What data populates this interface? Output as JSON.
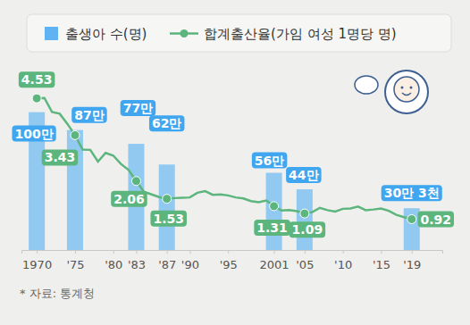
{
  "chart_data": {
    "type": "bar",
    "source": "* 자료: 통계청",
    "legend": "top",
    "data_labels": true,
    "tick_labels": "x",
    "x": [
      1970,
      1971,
      1972,
      1973,
      1974,
      1975,
      1976,
      1977,
      1978,
      1979,
      1980,
      1981,
      1982,
      1983,
      1984,
      1985,
      1986,
      1987,
      1988,
      1989,
      1990,
      1991,
      1992,
      1993,
      1994,
      1995,
      1996,
      1997,
      1998,
      1999,
      2000,
      2001,
      2002,
      2003,
      2004,
      2005,
      2006,
      2007,
      2008,
      2009,
      2010,
      2011,
      2012,
      2013,
      2014,
      2015,
      2016,
      2017,
      2018,
      2019
    ],
    "xlim": [
      1968,
      2023
    ],
    "xticks": [
      1970,
      {
        "value": 1975,
        "label": "'75"
      },
      {
        "value": 1980,
        "label": "'80"
      },
      {
        "value": 1983,
        "label": "'83"
      },
      {
        "value": 1987,
        "label": "'87"
      },
      {
        "value": 1990,
        "label": "'90"
      },
      {
        "value": 1995,
        "label": "'95"
      },
      2001,
      {
        "value": 2005,
        "label": "'05"
      },
      {
        "value": 2010,
        "label": "'10"
      },
      {
        "value": 2015,
        "label": "'15"
      },
      {
        "value": 2019,
        "label": "'19"
      }
    ],
    "ylim": [
      0,
      1360000
    ],
    "y2lim": [
      0,
      5.6
    ],
    "series": [
      {
        "name": "출생아 수(명)",
        "type": "bar",
        "color": "#5fb3f2",
        "values": [
          1000000,
          null,
          null,
          null,
          null,
          870000,
          null,
          null,
          null,
          null,
          null,
          null,
          null,
          770000,
          null,
          null,
          null,
          620000,
          null,
          null,
          null,
          null,
          null,
          null,
          null,
          null,
          null,
          null,
          null,
          null,
          null,
          560000,
          null,
          null,
          null,
          440000,
          null,
          null,
          null,
          null,
          null,
          null,
          null,
          null,
          null,
          null,
          null,
          null,
          null,
          303000
        ],
        "value_labels": [
          "100만",
          null,
          null,
          null,
          null,
          "87만",
          null,
          null,
          null,
          null,
          null,
          null,
          null,
          "77만",
          null,
          null,
          null,
          "62만",
          null,
          null,
          null,
          null,
          null,
          null,
          null,
          null,
          null,
          null,
          null,
          null,
          null,
          "56만",
          null,
          null,
          null,
          "44만",
          null,
          null,
          null,
          null,
          null,
          null,
          null,
          null,
          null,
          null,
          null,
          null,
          null,
          "30만 3천"
        ]
      },
      {
        "name": "합계출산율(가임 여성 1명당 명)",
        "type": "line",
        "axis": "y2",
        "color": "#5db57e",
        "marker": "circle",
        "values": [
          4.53,
          4.54,
          4.12,
          4.07,
          3.77,
          3.43,
          3.0,
          2.99,
          2.64,
          2.9,
          2.82,
          2.57,
          2.39,
          2.06,
          1.74,
          1.66,
          1.58,
          1.53,
          1.55,
          1.56,
          1.57,
          1.71,
          1.76,
          1.65,
          1.66,
          1.63,
          1.57,
          1.54,
          1.46,
          1.43,
          1.48,
          1.31,
          1.18,
          1.19,
          1.16,
          1.09,
          1.13,
          1.26,
          1.19,
          1.15,
          1.23,
          1.24,
          1.3,
          1.19,
          1.21,
          1.24,
          1.17,
          1.05,
          0.98,
          0.92
        ],
        "value_labels": [
          "4.53",
          null,
          null,
          null,
          null,
          "3.43",
          null,
          null,
          null,
          null,
          null,
          null,
          null,
          "2.06",
          null,
          null,
          null,
          "1.53",
          null,
          null,
          null,
          null,
          null,
          null,
          null,
          null,
          null,
          null,
          null,
          null,
          null,
          "1.31",
          null,
          null,
          null,
          "1.09",
          null,
          null,
          null,
          null,
          null,
          null,
          null,
          null,
          null,
          null,
          null,
          null,
          null,
          "0.92"
        ]
      }
    ]
  }
}
